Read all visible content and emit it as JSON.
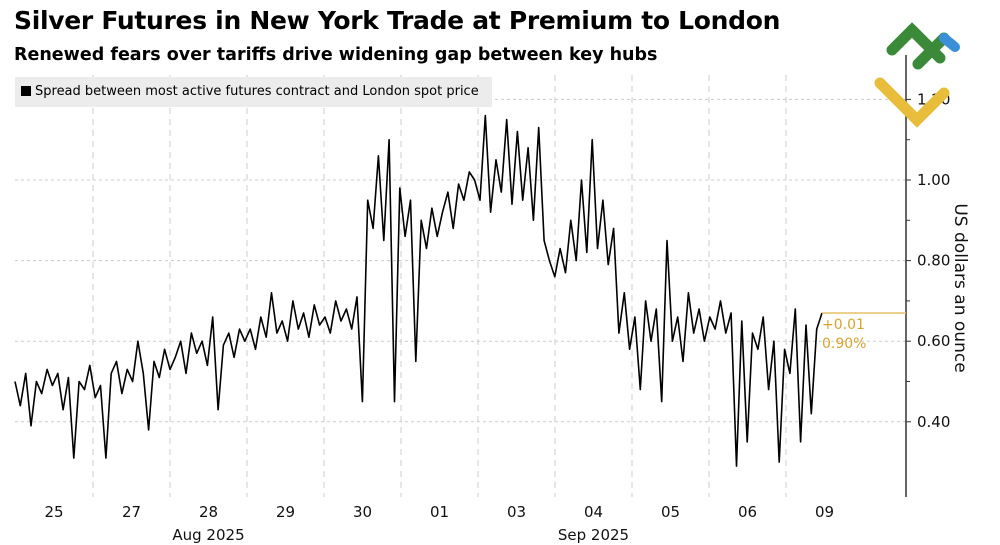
{
  "title": "Silver Futures in New York Trade at Premium to London",
  "subtitle": "Renewed fears over tariffs drive widening gap between key hubs",
  "chart_data": {
    "type": "line",
    "legend": "Spread between most active futures contract and London spot price",
    "legend_placement": "top-left",
    "ylabel": "US dollars an ounce",
    "ylim": [
      0.25,
      1.25
    ],
    "yticks": [
      {
        "v": 1.2,
        "label": "1.20"
      },
      {
        "v": 1.0,
        "label": "1.00"
      },
      {
        "v": 0.8,
        "label": "0.80"
      },
      {
        "v": 0.6,
        "label": "0.60"
      },
      {
        "v": 0.4,
        "label": "0.40"
      }
    ],
    "xticks": [
      "25",
      "27",
      "28",
      "29",
      "30",
      "01",
      "03",
      "04",
      "05",
      "06",
      "09"
    ],
    "month_labels": [
      {
        "label": "Aug 2025",
        "after_tick": 2
      },
      {
        "label": "Sep 2025",
        "after_tick": 7
      }
    ],
    "grid": true,
    "last_change": "+0.01",
    "last_change_pct": "0.90%",
    "last_value": 0.67,
    "series": [
      {
        "name": "Spread",
        "color": "#000000",
        "values": [
          0.5,
          0.44,
          0.52,
          0.39,
          0.5,
          0.47,
          0.53,
          0.49,
          0.52,
          0.43,
          0.51,
          0.31,
          0.5,
          0.48,
          0.54,
          0.46,
          0.49,
          0.31,
          0.52,
          0.55,
          0.47,
          0.53,
          0.5,
          0.6,
          0.52,
          0.38,
          0.55,
          0.51,
          0.58,
          0.53,
          0.56,
          0.6,
          0.52,
          0.62,
          0.57,
          0.6,
          0.54,
          0.66,
          0.43,
          0.59,
          0.62,
          0.56,
          0.63,
          0.6,
          0.63,
          0.58,
          0.66,
          0.61,
          0.72,
          0.62,
          0.65,
          0.6,
          0.7,
          0.63,
          0.67,
          0.61,
          0.69,
          0.64,
          0.66,
          0.62,
          0.7,
          0.65,
          0.68,
          0.63,
          0.71,
          0.45,
          0.95,
          0.88,
          1.06,
          0.85,
          1.1,
          0.45,
          0.98,
          0.86,
          0.95,
          0.55,
          0.9,
          0.83,
          0.93,
          0.86,
          0.92,
          0.97,
          0.88,
          0.99,
          0.95,
          1.02,
          1.0,
          0.95,
          1.16,
          0.92,
          1.05,
          0.97,
          1.15,
          0.94,
          1.12,
          0.95,
          1.08,
          0.9,
          1.13,
          0.85,
          0.8,
          0.76,
          0.83,
          0.77,
          0.9,
          0.8,
          1.0,
          0.82,
          1.1,
          0.83,
          0.95,
          0.79,
          0.88,
          0.62,
          0.72,
          0.58,
          0.66,
          0.48,
          0.7,
          0.6,
          0.68,
          0.45,
          0.85,
          0.6,
          0.66,
          0.55,
          0.72,
          0.62,
          0.68,
          0.6,
          0.66,
          0.63,
          0.7,
          0.62,
          0.67,
          0.29,
          0.65,
          0.35,
          0.62,
          0.58,
          0.66,
          0.48,
          0.6,
          0.3,
          0.58,
          0.52,
          0.68,
          0.35,
          0.64,
          0.42,
          0.63,
          0.67
        ]
      }
    ]
  }
}
